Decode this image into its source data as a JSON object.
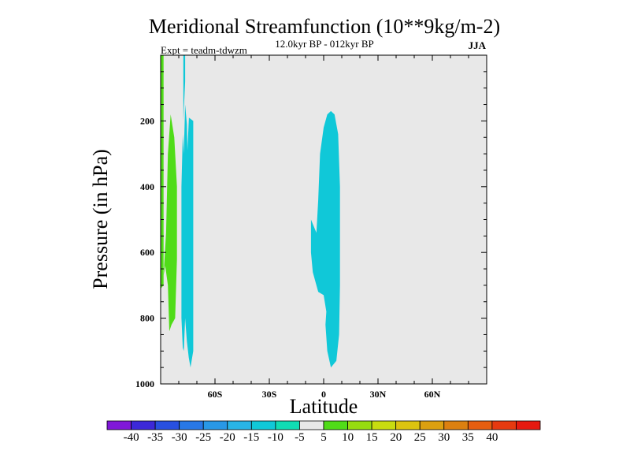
{
  "chart_data": {
    "type": "contour",
    "title": "Meridional Streamfunction (10**9kg/m-2)",
    "subtitle": "12.0kyr BP - 012kyr BP",
    "expt_label": "Expt = teadm-tdwzm",
    "season": "JJA",
    "xlabel": "Latitude",
    "ylabel": "Pressure (in hPa)",
    "xlim": [
      -90,
      90
    ],
    "ylim": [
      1000,
      0
    ],
    "x_ticks": [
      {
        "value": -60,
        "label": "60S"
      },
      {
        "value": -30,
        "label": "30S"
      },
      {
        "value": 0,
        "label": "0"
      },
      {
        "value": 30,
        "label": "30N"
      },
      {
        "value": 60,
        "label": "60N"
      }
    ],
    "y_ticks": [
      {
        "value": 200,
        "label": "200"
      },
      {
        "value": 400,
        "label": "400"
      },
      {
        "value": 600,
        "label": "600"
      },
      {
        "value": 800,
        "label": "800"
      },
      {
        "value": 1000,
        "label": "1000"
      }
    ],
    "background_value_range": "-5 to 5",
    "regions": [
      {
        "name": "green-strip-far-south",
        "range": "5 to 10",
        "points": [
          [
            -90,
            0
          ],
          [
            -88.4,
            0
          ],
          [
            -88.4,
            700
          ],
          [
            -90,
            710
          ]
        ]
      },
      {
        "name": "green-cell-south",
        "range": "5 to 10",
        "points": [
          [
            -88.4,
            670
          ],
          [
            -87,
            540
          ],
          [
            -86,
            300
          ],
          [
            -84.5,
            180
          ],
          [
            -82.5,
            250
          ],
          [
            -81,
            400
          ],
          [
            -81,
            620
          ],
          [
            -82,
            800
          ],
          [
            -84,
            820
          ],
          [
            -85.2,
            840
          ],
          [
            -86,
            700
          ],
          [
            -87.5,
            640
          ]
        ]
      },
      {
        "name": "cyan-sliver-60s",
        "range": "-15 to -10",
        "points": [
          [
            -77.5,
            0
          ],
          [
            -76.5,
            0
          ],
          [
            -76.5,
            80
          ],
          [
            -77.5,
            200
          ]
        ]
      },
      {
        "name": "cyan-cell-60s",
        "range": "-15 to -10",
        "points": [
          [
            -78.5,
            400
          ],
          [
            -77.8,
            240
          ],
          [
            -77.2,
            300
          ],
          [
            -76.5,
            150
          ],
          [
            -75.5,
            210
          ],
          [
            -75.2,
            290
          ],
          [
            -74.4,
            190
          ],
          [
            -72,
            200
          ],
          [
            -72,
            900
          ],
          [
            -73.5,
            950
          ],
          [
            -74.5,
            920
          ],
          [
            -75.5,
            870
          ],
          [
            -76.5,
            800
          ],
          [
            -77.2,
            900
          ],
          [
            -77.8,
            890
          ],
          [
            -78.5,
            800
          ]
        ]
      },
      {
        "name": "cyan-cell-equator",
        "range": "-15 to -10",
        "points": [
          [
            -7,
            500
          ],
          [
            -4,
            540
          ],
          [
            -3,
            440
          ],
          [
            -2,
            300
          ],
          [
            0,
            220
          ],
          [
            2,
            180
          ],
          [
            4,
            170
          ],
          [
            6,
            180
          ],
          [
            8,
            240
          ],
          [
            9,
            400
          ],
          [
            9,
            700
          ],
          [
            8.5,
            850
          ],
          [
            7,
            930
          ],
          [
            4,
            950
          ],
          [
            2,
            900
          ],
          [
            1,
            820
          ],
          [
            1.5,
            780
          ],
          [
            0,
            730
          ],
          [
            -3,
            720
          ],
          [
            -6,
            660
          ],
          [
            -7,
            600
          ]
        ]
      }
    ],
    "colorbar": {
      "colors": [
        "#8018d8",
        "#3c28d8",
        "#2850e0",
        "#2878e6",
        "#2898e6",
        "#28b4e6",
        "#10c8d8",
        "#10dcb4",
        "#e8e8e8",
        "#50dc18",
        "#96dc10",
        "#c8dc10",
        "#dcc410",
        "#dca010",
        "#dc8010",
        "#e65e10",
        "#e63a10",
        "#e61a10"
      ],
      "ticks": [
        "-40",
        "-35",
        "-30",
        "-25",
        "-20",
        "-15",
        "-10",
        "-5",
        "5",
        "10",
        "15",
        "20",
        "25",
        "30",
        "35",
        "40"
      ]
    }
  }
}
